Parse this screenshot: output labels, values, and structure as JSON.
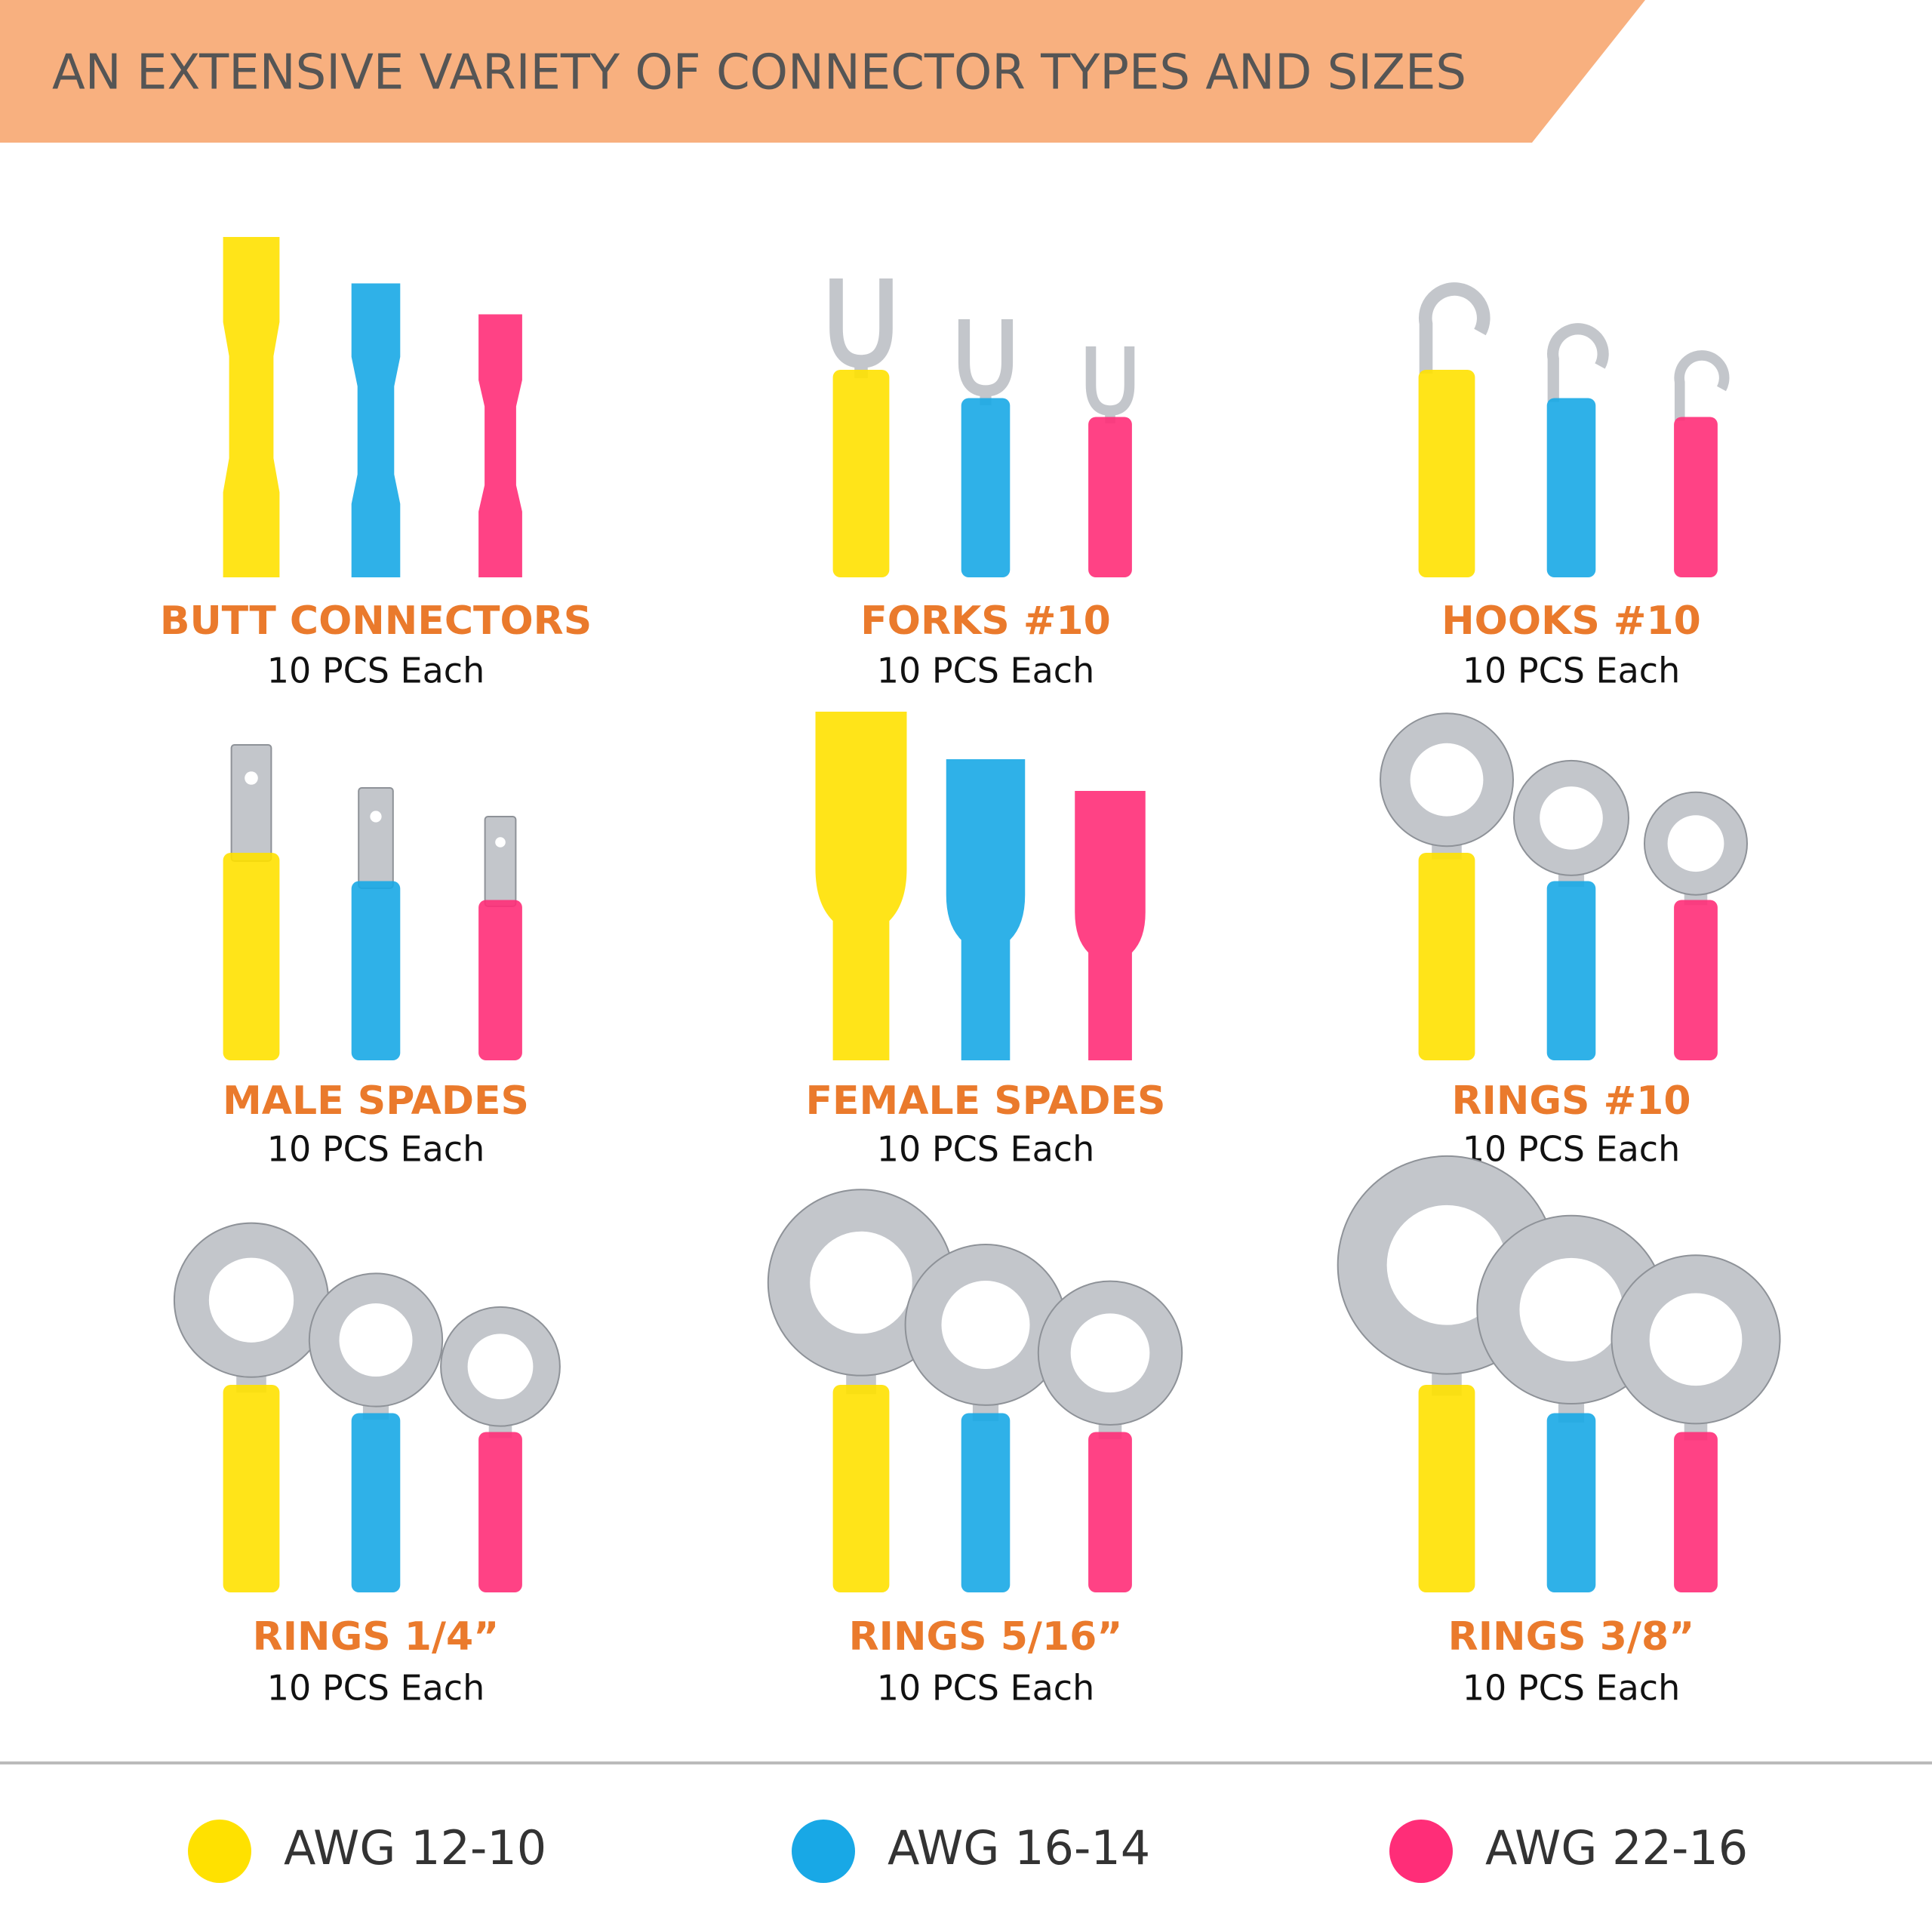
{
  "header": {
    "title": "AN EXTENSIVE VARIETY OF CONNECTOR TYPES AND SIZES"
  },
  "items": [
    {
      "name": "BUTT CONNECTORS",
      "quantity": "10 PCS Each"
    },
    {
      "name": "FORKS #10",
      "quantity": "10 PCS Each"
    },
    {
      "name": "HOOKS #10",
      "quantity": "10 PCS Each"
    },
    {
      "name": "MALE SPADES",
      "quantity": "10 PCS Each"
    },
    {
      "name": "FEMALE SPADES",
      "quantity": "10 PCS Each"
    },
    {
      "name": "RINGS #10",
      "quantity": "10 PCS Each"
    },
    {
      "name": "RINGS 1/4”",
      "quantity": "10 PCS Each"
    },
    {
      "name": "RINGS 5/16”",
      "quantity": "10 PCS Each"
    },
    {
      "name": "RINGS 3/8”",
      "quantity": "10 PCS Each"
    }
  ],
  "legend": [
    {
      "label": "AWG 12-10",
      "color": "#ffe100"
    },
    {
      "label": "AWG 16-14",
      "color": "#18a8e6"
    },
    {
      "label": "AWG 22-16",
      "color": "#ff2d78"
    }
  ]
}
